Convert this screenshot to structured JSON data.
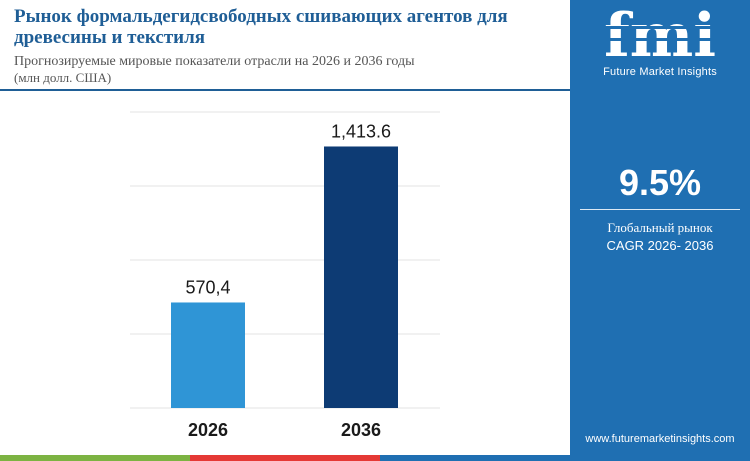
{
  "header": {
    "title": "Рынок формальдегидсвободных сшивающих агентов для древесины и текстиля",
    "subtitle": "Прогнозируемые мировые показатели отрасли на 2026 и 2036 годы",
    "unit": "(млн долл. США)"
  },
  "side_panel": {
    "logo_text": "fmi",
    "brand_name": "Future Market Insights",
    "cagr_value": "9.5%",
    "cagr_label": "Глобальный рынок",
    "cagr_period": "CAGR 2026- 2036",
    "website": "www.futuremarketinsights.com",
    "background_color": "#1f6fb2"
  },
  "chart_data": {
    "type": "bar",
    "title": "",
    "xlabel": "",
    "ylabel": "",
    "categories": [
      "2026",
      "2036"
    ],
    "values": [
      570.4,
      1413.6
    ],
    "value_labels": [
      "570,4",
      "1,413.6"
    ],
    "bar_colors": [
      "#2f95d6",
      "#0d3b74"
    ],
    "ylim": [
      0,
      1600
    ],
    "grid": true,
    "legend": "none"
  },
  "footer_colors": [
    "#7cb342",
    "#e53935",
    "#1f6fb2"
  ]
}
